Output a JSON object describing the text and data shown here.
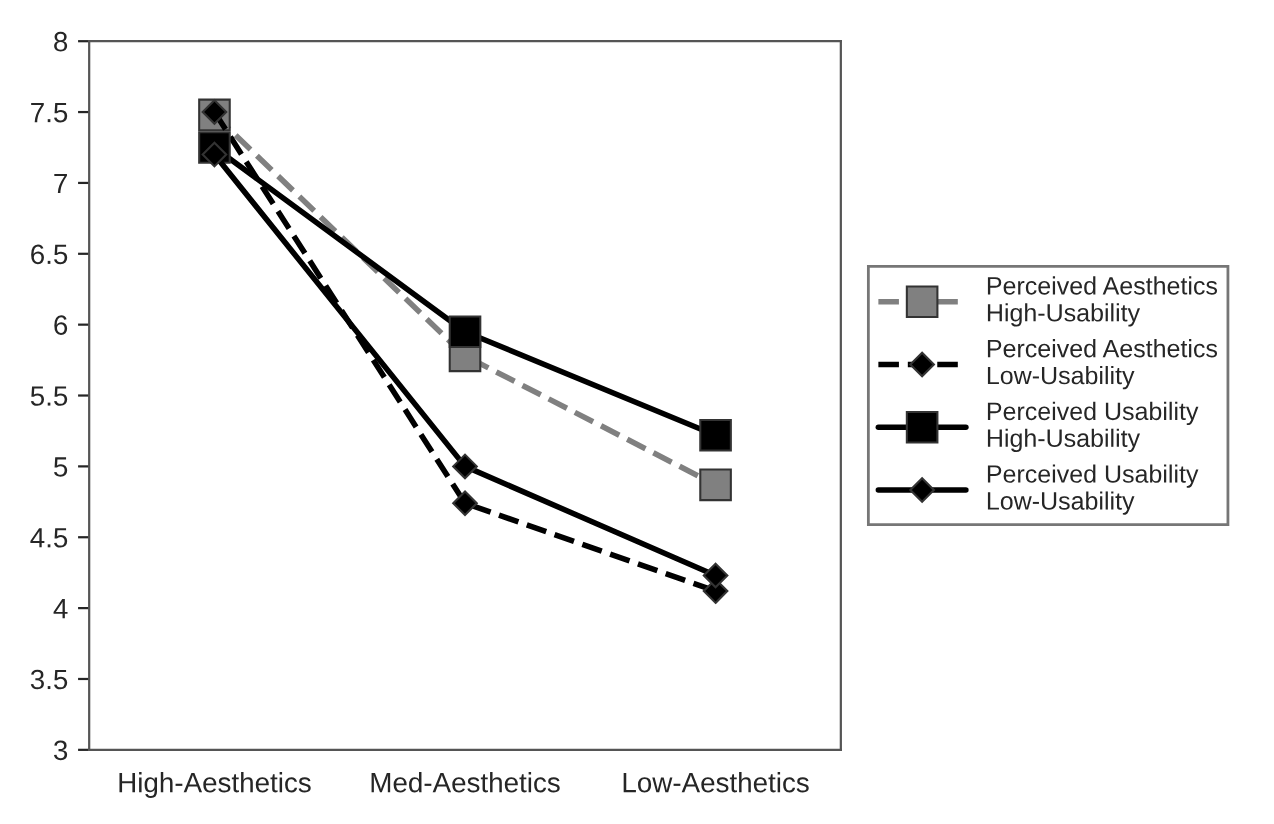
{
  "chart_data": {
    "type": "line",
    "categories": [
      "High-Aesthetics",
      "Med-Aesthetics",
      "Low-Aesthetics"
    ],
    "series": [
      {
        "name": "Perceived Aesthetics\nHigh-Usability",
        "color": "#808080",
        "values": [
          7.48,
          5.78,
          4.87
        ],
        "marker": "square",
        "line_style": "dashed"
      },
      {
        "name": "Perceived Aesthetics\nLow-Usability",
        "color": "#000000",
        "values": [
          7.5,
          4.74,
          4.12
        ],
        "marker": "diamond",
        "line_style": "dashed"
      },
      {
        "name": "Perceived Usability\nHigh-Usability",
        "color": "#000000",
        "values": [
          7.25,
          5.95,
          5.22
        ],
        "marker": "square",
        "line_style": "solid"
      },
      {
        "name": "Perceived Usability\nLow-Usability",
        "color": "#000000",
        "values": [
          7.2,
          5.0,
          4.23
        ],
        "marker": "diamond",
        "line_style": "solid"
      }
    ],
    "ylim": [
      3,
      8
    ],
    "yticks": [
      3,
      3.5,
      4,
      4.5,
      5,
      5.5,
      6,
      6.5,
      7,
      7.5,
      8
    ],
    "grid": false,
    "legend": "right"
  }
}
